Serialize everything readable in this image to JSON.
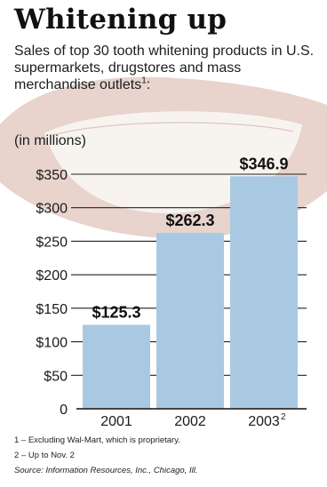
{
  "title": "Whitening up",
  "subtitle": "Sales of top 30 tooth whitening products in U.S. supermarkets, drugstores and mass merchandise outlets",
  "subtitle_note_marker": "1",
  "subtitle_end": ":",
  "unit_label": "(in millions)",
  "footnotes": [
    "1 – Excluding Wal-Mart, which is proprietary.",
    "2 – Up to Nov. 2"
  ],
  "source": "Source: Information Resources, Inc., Chicago, Ill.",
  "colors": {
    "bar": "#a9c9e3",
    "background_art": "#e8d3cd",
    "teeth": "#f7f4f0"
  },
  "chart_data": {
    "type": "bar",
    "categories": [
      "2001",
      "2002",
      "2003"
    ],
    "category_note_markers": [
      "",
      "",
      "2"
    ],
    "values": [
      125.3,
      262.3,
      346.9
    ],
    "value_labels": [
      "$125.3",
      "$262.3",
      "$346.9"
    ],
    "yticks": [
      0,
      50,
      100,
      150,
      200,
      250,
      300,
      350
    ],
    "ytick_labels": [
      "0",
      "$50",
      "$100",
      "$150",
      "$200",
      "$250",
      "$300",
      "$350"
    ],
    "ylim": [
      0,
      350
    ],
    "grid": true
  }
}
